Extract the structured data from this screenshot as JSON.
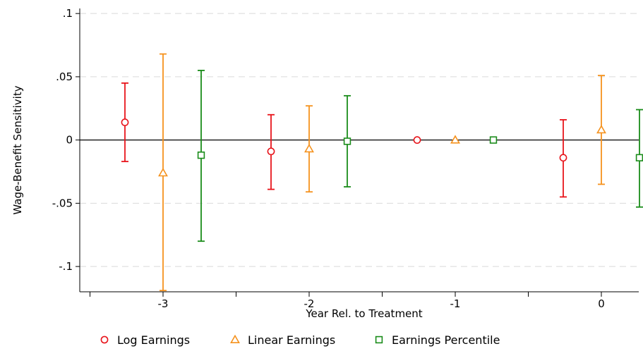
{
  "chart_data": {
    "type": "scatter",
    "title": "",
    "xlabel": "Year Rel. to Treatment",
    "ylabel": "Wage-Benefit Sensitivity",
    "ylim": [
      -0.12,
      0.104
    ],
    "x_ticks": [
      {
        "value": -3,
        "label": "-3"
      },
      {
        "value": -2,
        "label": "-2"
      },
      {
        "value": -1,
        "label": "-1"
      },
      {
        "value": 0,
        "label": "0"
      }
    ],
    "y_ticks": [
      {
        "value": 0.1,
        "label": ".1"
      },
      {
        "value": 0.05,
        "label": ".05"
      },
      {
        "value": 0,
        "label": "0"
      },
      {
        "value": -0.05,
        "label": "-.05"
      },
      {
        "value": -0.1,
        "label": "-.1"
      }
    ],
    "grid": true,
    "reference_line": 0,
    "legend_position": "bottom",
    "series": [
      {
        "name": "Log Earnings",
        "marker": "circle",
        "color": "#e8141b",
        "points": [
          {
            "x": -3,
            "y": 0.014,
            "lo": -0.017,
            "hi": 0.045
          },
          {
            "x": -2,
            "y": -0.009,
            "lo": -0.039,
            "hi": 0.02
          },
          {
            "x": -1,
            "y": 0.0,
            "lo": 0.0,
            "hi": 0.0
          },
          {
            "x": 0,
            "y": -0.014,
            "lo": -0.045,
            "hi": 0.016
          }
        ]
      },
      {
        "name": "Linear Earnings",
        "marker": "triangle",
        "color": "#f5921e",
        "points": [
          {
            "x": -3,
            "y": -0.026,
            "lo": -0.119,
            "hi": 0.068
          },
          {
            "x": -2,
            "y": -0.007,
            "lo": -0.041,
            "hi": 0.027
          },
          {
            "x": -1,
            "y": 0.0,
            "lo": 0.0,
            "hi": 0.0
          },
          {
            "x": 0,
            "y": 0.008,
            "lo": -0.035,
            "hi": 0.051
          }
        ]
      },
      {
        "name": "Earnings Percentile",
        "marker": "square",
        "color": "#1a8c1a",
        "points": [
          {
            "x": -3,
            "y": -0.012,
            "lo": -0.08,
            "hi": 0.055
          },
          {
            "x": -2,
            "y": -0.001,
            "lo": -0.037,
            "hi": 0.035
          },
          {
            "x": -1,
            "y": 0.0,
            "lo": 0.0,
            "hi": 0.0
          },
          {
            "x": 0,
            "y": -0.014,
            "lo": -0.053,
            "hi": 0.024
          }
        ]
      }
    ]
  }
}
